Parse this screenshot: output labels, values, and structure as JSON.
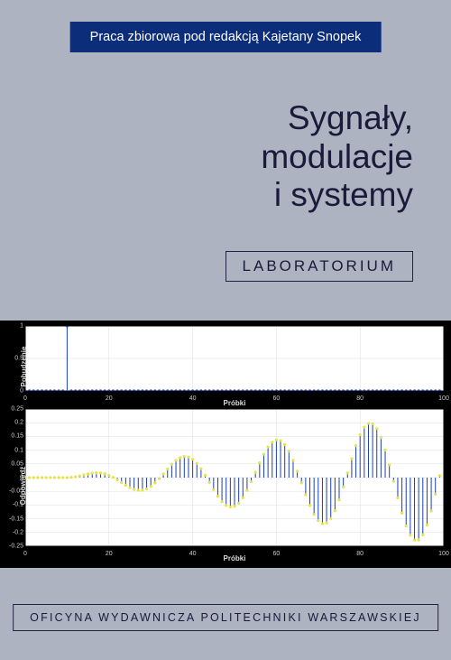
{
  "header": {
    "text": "Praca zbiorowa pod redakcją Kajetany Snopek",
    "bg": "#0c2d7a",
    "color": "#ffffff"
  },
  "title": {
    "line1": "Sygnały,",
    "line2": "modulacje",
    "line3": "i systemy",
    "color": "#1a1a3a"
  },
  "lab": {
    "text": "LABORATORIUM"
  },
  "publisher": {
    "text": "OFICYNA WYDAWNICZA POLITECHNIKI WARSZAWSKIEJ"
  },
  "chart_top": {
    "type": "stem",
    "xlim": [
      0,
      100
    ],
    "ylim": [
      0,
      1
    ],
    "xticks": [
      0,
      20,
      40,
      60,
      80,
      100
    ],
    "yticks": [
      0,
      0.5,
      1
    ],
    "xlabel": "Próbki",
    "ylabel": "Pobudzenie",
    "stem_color": "#1b3fb2",
    "marker_color": "#1b3fb2",
    "grid_color": "#dcdcdc",
    "bg": "#ffffff",
    "impulse_at": 10,
    "n_samples": 100
  },
  "chart_bottom": {
    "type": "stem",
    "xlim": [
      0,
      100
    ],
    "ylim": [
      -0.25,
      0.25
    ],
    "xticks": [
      0,
      20,
      40,
      60,
      80,
      100
    ],
    "yticks": [
      -0.25,
      -0.2,
      -0.15,
      -0.1,
      -0.05,
      0,
      0.05,
      0.1,
      0.15,
      0.2,
      0.25
    ],
    "xlabel": "Próbki",
    "ylabel": "Odpowiedź",
    "stem_color": "#1b3fb2",
    "marker_color": "#e6e24a",
    "grid_color": "#dcdcdc",
    "bg": "#ffffff",
    "n_samples": 100,
    "freq": 0.045,
    "growth": 0.025,
    "start_at": 10
  }
}
